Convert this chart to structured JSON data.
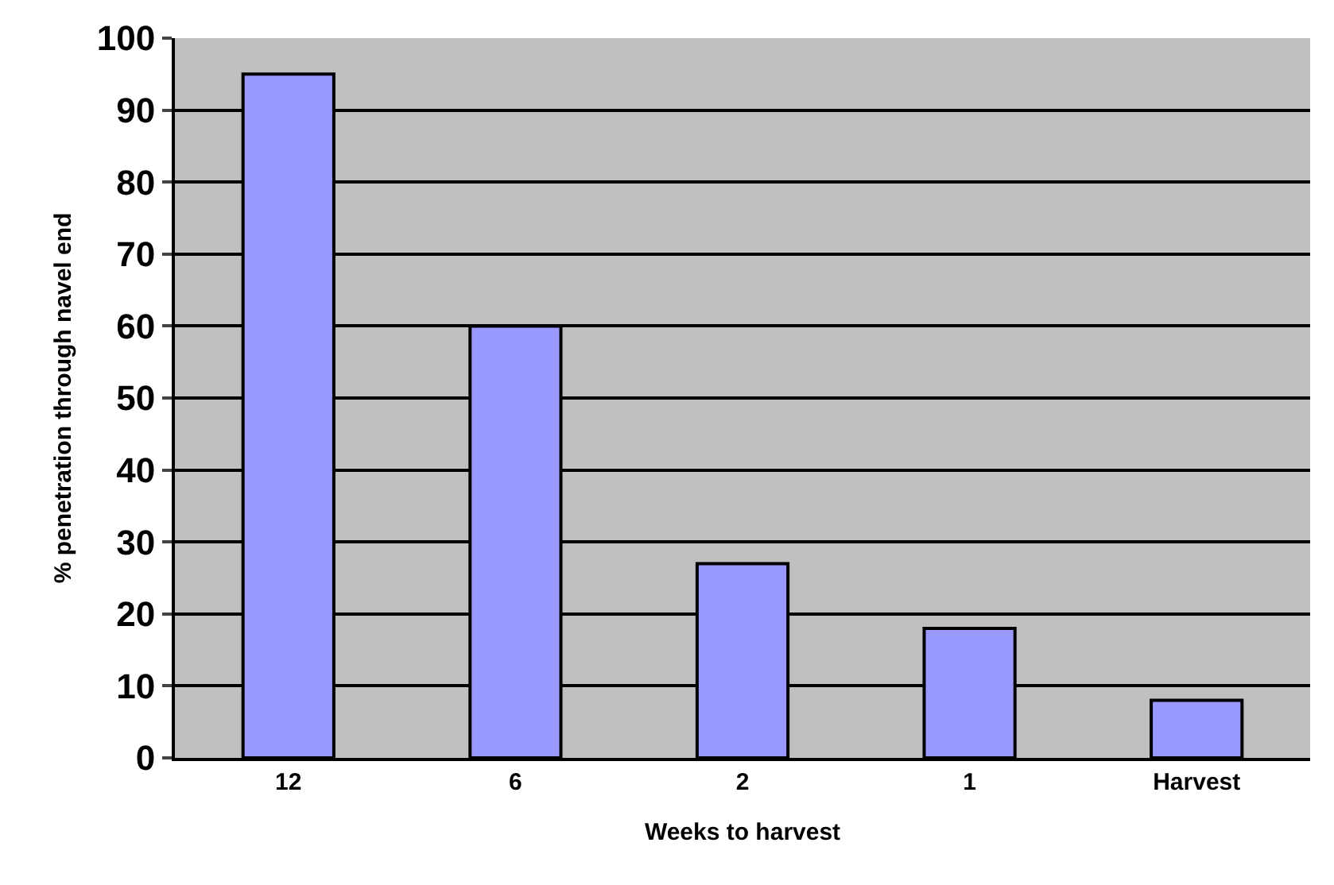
{
  "chart_data": {
    "type": "bar",
    "xlabel": "Weeks to harvest",
    "ylabel": "% penetration through navel end",
    "categories": [
      "12",
      "6",
      "2",
      "1",
      "Harvest"
    ],
    "values": [
      95,
      60,
      27,
      18,
      8
    ],
    "color": "#9999ff",
    "ylim": [
      0,
      100
    ],
    "yticks": [
      0,
      10,
      20,
      30,
      40,
      50,
      60,
      70,
      80,
      90,
      100
    ],
    "grid": "y"
  }
}
